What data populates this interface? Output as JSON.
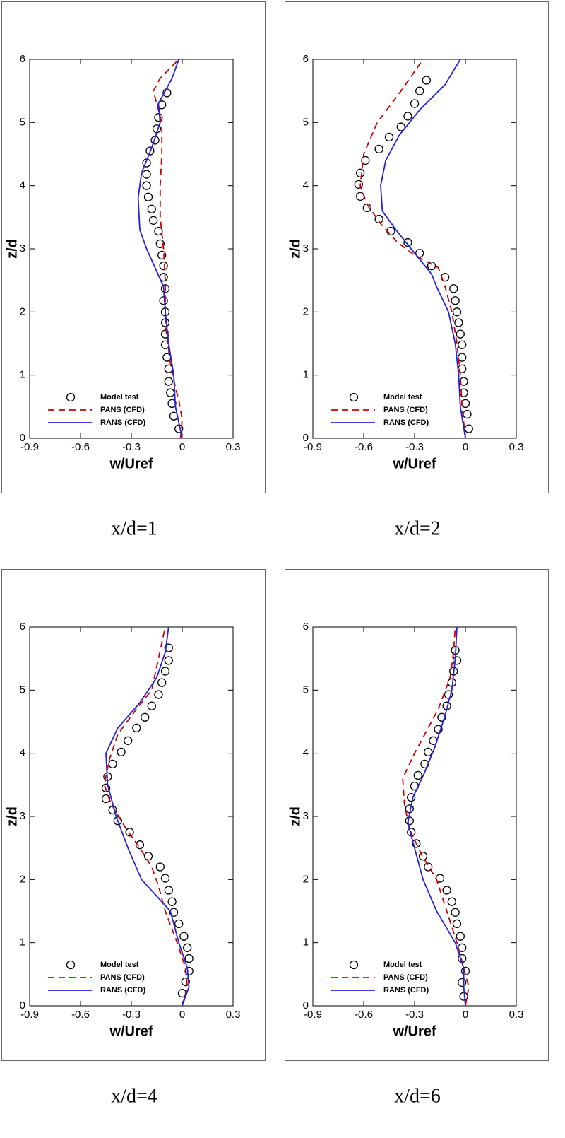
{
  "chart_data": [
    {
      "type": "profile",
      "caption": "x/d=1",
      "x_label": "w/Uref",
      "y_label": "z/d",
      "xlim": [
        -0.9,
        0.3
      ],
      "ylim": [
        0,
        6
      ],
      "xticks": [
        -0.9,
        -0.6,
        -0.3,
        0,
        0.3
      ],
      "yticks": [
        0,
        1,
        2,
        3,
        4,
        5,
        6
      ],
      "series": [
        {
          "name": "Model test",
          "color": "#000000",
          "style": "circle",
          "x": [
            -0.02,
            -0.05,
            -0.06,
            -0.07,
            -0.08,
            -0.08,
            -0.09,
            -0.1,
            -0.1,
            -0.1,
            -0.1,
            -0.11,
            -0.1,
            -0.11,
            -0.11,
            -0.12,
            -0.13,
            -0.14,
            -0.17,
            -0.18,
            -0.2,
            -0.21,
            -0.21,
            -0.21,
            -0.19,
            -0.16,
            -0.15,
            -0.14,
            -0.12,
            -0.09
          ],
          "values": [
            0.15,
            0.35,
            0.55,
            0.72,
            0.9,
            1.1,
            1.28,
            1.48,
            1.65,
            1.83,
            2.0,
            2.18,
            2.37,
            2.55,
            2.73,
            2.9,
            3.08,
            3.28,
            3.45,
            3.63,
            3.82,
            4.0,
            4.18,
            4.36,
            4.55,
            4.72,
            4.9,
            5.08,
            5.28,
            5.47
          ]
        },
        {
          "name": "PANS (CFD)",
          "color": "#cc0000",
          "style": "dashed",
          "x": [
            -0.01,
            0,
            -0.02,
            -0.04,
            -0.07,
            -0.1,
            -0.1,
            -0.11,
            -0.13,
            -0.13,
            -0.12,
            -0.12,
            -0.17,
            -0.13,
            -0.02
          ],
          "values": [
            0,
            0.3,
            0.6,
            0.8,
            1.2,
            1.8,
            2.5,
            3.0,
            3.5,
            4.0,
            4.5,
            5.0,
            5.5,
            5.7,
            6.0
          ]
        },
        {
          "name": "RANS (CFD)",
          "color": "#2222dd",
          "style": "solid",
          "x": [
            0,
            -0.04,
            -0.05,
            -0.08,
            -0.1,
            -0.11,
            -0.16,
            -0.21,
            -0.25,
            -0.26,
            -0.24,
            -0.18,
            -0.13,
            -0.14,
            -0.11,
            -0.06,
            -0.02
          ],
          "values": [
            0,
            0.5,
            1.0,
            1.5,
            2.0,
            2.4,
            2.7,
            3.0,
            3.3,
            3.8,
            4.2,
            4.6,
            5.0,
            5.3,
            5.45,
            5.7,
            6.0
          ]
        }
      ]
    },
    {
      "type": "profile",
      "caption": "x/d=2",
      "x_label": "w/Uref",
      "y_label": "z/d",
      "xlim": [
        -0.9,
        0.3
      ],
      "ylim": [
        0,
        6
      ],
      "xticks": [
        -0.9,
        -0.6,
        -0.3,
        0,
        0.3
      ],
      "yticks": [
        0,
        1,
        2,
        3,
        4,
        5,
        6
      ],
      "series": [
        {
          "name": "Model test",
          "color": "#000000",
          "style": "circle",
          "x": [
            0.02,
            0.01,
            0,
            -0.01,
            -0.01,
            -0.02,
            -0.02,
            -0.02,
            -0.03,
            -0.04,
            -0.05,
            -0.06,
            -0.07,
            -0.12,
            -0.2,
            -0.27,
            -0.34,
            -0.44,
            -0.51,
            -0.58,
            -0.62,
            -0.63,
            -0.62,
            -0.59,
            -0.51,
            -0.45,
            -0.38,
            -0.34,
            -0.3,
            -0.27,
            -0.23
          ],
          "values": [
            0.15,
            0.38,
            0.55,
            0.72,
            0.9,
            1.1,
            1.28,
            1.48,
            1.65,
            1.83,
            2.0,
            2.18,
            2.37,
            2.55,
            2.73,
            2.93,
            3.1,
            3.28,
            3.47,
            3.65,
            3.83,
            4.02,
            4.2,
            4.4,
            4.58,
            4.77,
            4.93,
            5.1,
            5.3,
            5.5,
            5.67
          ]
        },
        {
          "name": "PANS (CFD)",
          "color": "#cc0000",
          "style": "dashed",
          "x": [
            0,
            -0.02,
            -0.03,
            -0.05,
            -0.08,
            -0.12,
            -0.16,
            -0.3,
            -0.4,
            -0.5,
            -0.58,
            -0.62,
            -0.6,
            -0.52,
            -0.38,
            -0.25
          ],
          "values": [
            0,
            0.5,
            1.0,
            1.5,
            2.0,
            2.4,
            2.7,
            2.9,
            3.1,
            3.4,
            3.7,
            4.0,
            4.5,
            5.0,
            5.5,
            6.0
          ]
        },
        {
          "name": "RANS (CFD)",
          "color": "#2222dd",
          "style": "solid",
          "x": [
            0,
            -0.03,
            -0.04,
            -0.06,
            -0.1,
            -0.17,
            -0.2,
            -0.32,
            -0.41,
            -0.49,
            -0.5,
            -0.47,
            -0.39,
            -0.27,
            -0.12,
            -0.03
          ],
          "values": [
            0,
            0.5,
            1.0,
            1.5,
            2.0,
            2.4,
            2.6,
            3.0,
            3.3,
            3.6,
            4.0,
            4.4,
            4.8,
            5.2,
            5.6,
            6.0
          ]
        }
      ]
    },
    {
      "type": "profile",
      "caption": "x/d=4",
      "x_label": "w/Uref",
      "y_label": "z/d",
      "xlim": [
        -0.9,
        0.3
      ],
      "ylim": [
        0,
        6
      ],
      "xticks": [
        -0.9,
        -0.6,
        -0.3,
        0,
        0.3
      ],
      "yticks": [
        0,
        1,
        2,
        3,
        4,
        5,
        6
      ],
      "series": [
        {
          "name": "Model test",
          "color": "#000000",
          "style": "circle",
          "x": [
            0,
            0.02,
            0.04,
            0.04,
            0.03,
            0.01,
            -0.02,
            -0.05,
            -0.06,
            -0.08,
            -0.1,
            -0.13,
            -0.2,
            -0.25,
            -0.31,
            -0.38,
            -0.41,
            -0.45,
            -0.45,
            -0.44,
            -0.41,
            -0.36,
            -0.32,
            -0.27,
            -0.22,
            -0.18,
            -0.14,
            -0.12,
            -0.1,
            -0.08,
            -0.08
          ],
          "values": [
            0.2,
            0.38,
            0.55,
            0.75,
            0.92,
            1.1,
            1.3,
            1.48,
            1.65,
            1.83,
            2.02,
            2.2,
            2.37,
            2.55,
            2.75,
            2.93,
            3.1,
            3.28,
            3.45,
            3.63,
            3.83,
            4.02,
            4.2,
            4.4,
            4.57,
            4.75,
            4.93,
            5.12,
            5.3,
            5.47,
            5.67
          ]
        },
        {
          "name": "PANS (CFD)",
          "color": "#cc0000",
          "style": "dashed",
          "x": [
            0,
            0.03,
            0.02,
            -0.03,
            -0.1,
            -0.14,
            -0.18,
            -0.25,
            -0.33,
            -0.42,
            -0.46,
            -0.43,
            -0.38,
            -0.27,
            -0.18,
            -0.14,
            -0.1
          ],
          "values": [
            0,
            0.3,
            0.6,
            1.0,
            1.5,
            1.9,
            2.2,
            2.5,
            2.8,
            3.2,
            3.5,
            3.9,
            4.3,
            4.7,
            5.0,
            5.5,
            6.0
          ]
        },
        {
          "name": "RANS (CFD)",
          "color": "#2222dd",
          "style": "solid",
          "x": [
            0,
            0.04,
            0.03,
            -0.02,
            -0.07,
            -0.24,
            -0.32,
            -0.39,
            -0.44,
            -0.45,
            -0.38,
            -0.25,
            -0.15,
            -0.1,
            -0.08
          ],
          "values": [
            0,
            0.3,
            0.6,
            1.0,
            1.5,
            2.0,
            2.5,
            3.0,
            3.5,
            4.0,
            4.4,
            4.8,
            5.2,
            5.6,
            6.0
          ]
        }
      ]
    },
    {
      "type": "profile",
      "caption": "x/d=6",
      "x_label": "w/Uref",
      "y_label": "z/d",
      "xlim": [
        -0.9,
        0.3
      ],
      "ylim": [
        0,
        6
      ],
      "xticks": [
        -0.9,
        -0.6,
        -0.3,
        0,
        0.3
      ],
      "yticks": [
        0,
        1,
        2,
        3,
        4,
        5,
        6
      ],
      "series": [
        {
          "name": "Model test",
          "color": "#000000",
          "style": "circle",
          "x": [
            -0.01,
            -0.02,
            0,
            -0.02,
            -0.02,
            -0.03,
            -0.05,
            -0.06,
            -0.08,
            -0.11,
            -0.15,
            -0.22,
            -0.25,
            -0.29,
            -0.32,
            -0.33,
            -0.33,
            -0.32,
            -0.3,
            -0.28,
            -0.24,
            -0.22,
            -0.19,
            -0.16,
            -0.14,
            -0.11,
            -0.1,
            -0.08,
            -0.07,
            -0.05,
            -0.06
          ],
          "values": [
            0.15,
            0.37,
            0.55,
            0.75,
            0.92,
            1.1,
            1.3,
            1.48,
            1.65,
            1.83,
            2.02,
            2.2,
            2.37,
            2.57,
            2.75,
            2.93,
            3.12,
            3.3,
            3.48,
            3.65,
            3.83,
            4.02,
            4.2,
            4.38,
            4.57,
            4.75,
            4.93,
            5.12,
            5.3,
            5.47,
            5.63
          ]
        },
        {
          "name": "PANS (CFD)",
          "color": "#cc0000",
          "style": "dashed",
          "x": [
            0,
            0.02,
            -0.01,
            -0.05,
            -0.11,
            -0.17,
            -0.26,
            -0.33,
            -0.36,
            -0.37,
            -0.3,
            -0.24,
            -0.16,
            -0.09,
            -0.07,
            -0.06
          ],
          "values": [
            0,
            0.3,
            0.6,
            1.0,
            1.5,
            2.0,
            2.4,
            2.8,
            3.2,
            3.6,
            4.0,
            4.3,
            4.7,
            5.2,
            5.6,
            6.0
          ]
        },
        {
          "name": "RANS (CFD)",
          "color": "#2222dd",
          "style": "solid",
          "x": [
            0,
            -0.01,
            -0.01,
            -0.06,
            -0.17,
            -0.25,
            -0.3,
            -0.34,
            -0.31,
            -0.24,
            -0.18,
            -0.12,
            -0.08,
            -0.06,
            -0.05
          ],
          "values": [
            0,
            0.3,
            0.6,
            1.0,
            1.5,
            2.0,
            2.5,
            2.9,
            3.3,
            3.7,
            4.1,
            4.6,
            5.0,
            5.5,
            6.0
          ]
        }
      ]
    }
  ]
}
